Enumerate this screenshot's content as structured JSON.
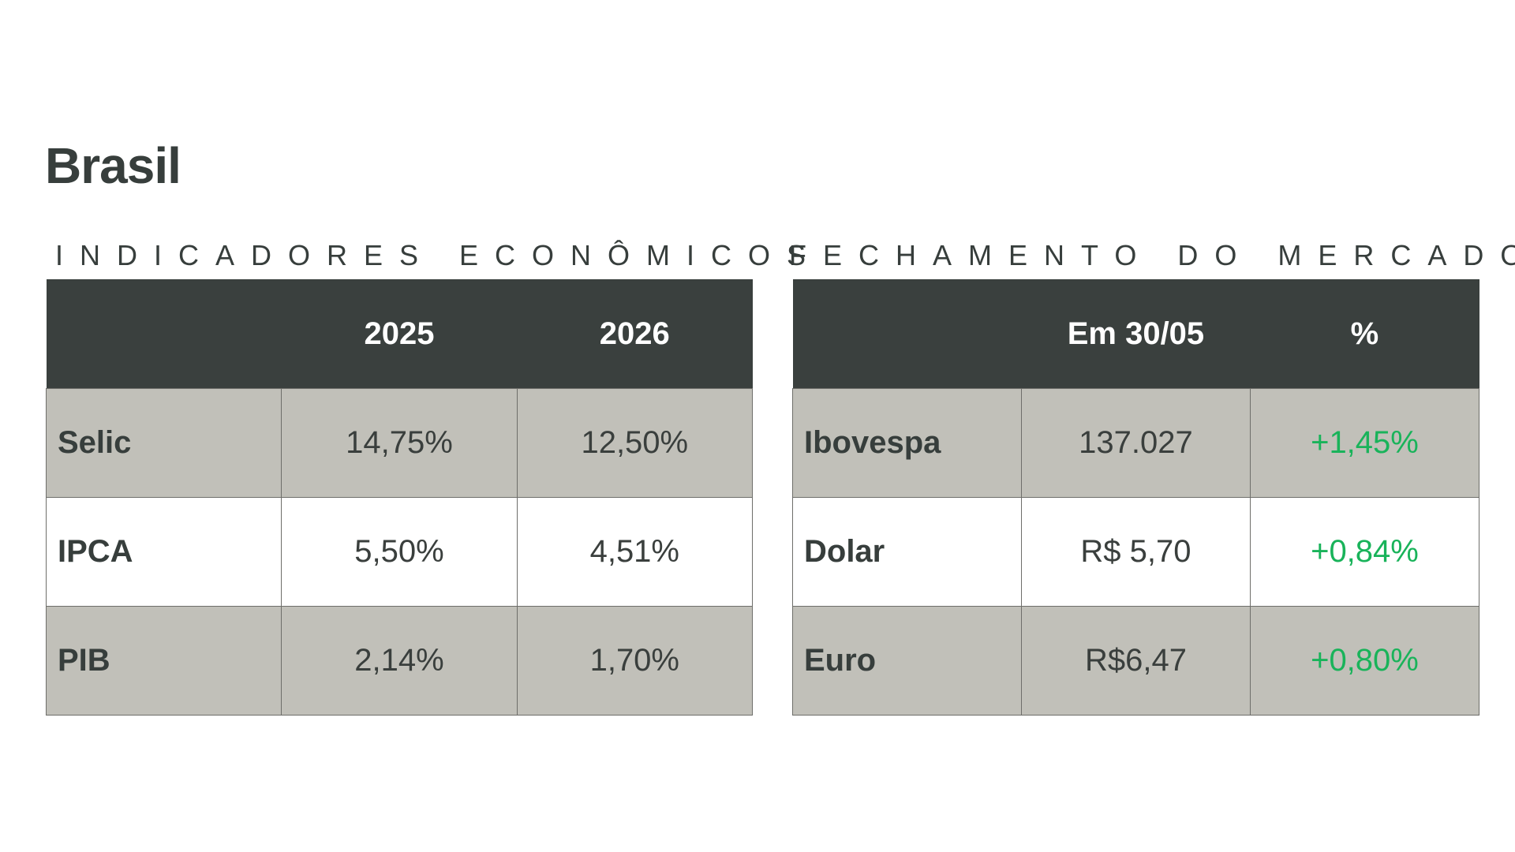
{
  "title": "Brasil",
  "indicators": {
    "label": "INDICADORES ECONÔMICOS",
    "headers": [
      "",
      "2025",
      "2026"
    ],
    "rows": [
      {
        "name": "Selic",
        "values": [
          "14,75%",
          "12,50%"
        ]
      },
      {
        "name": "IPCA",
        "values": [
          "5,50%",
          "4,51%"
        ]
      },
      {
        "name": "PIB",
        "values": [
          "2,14%",
          "1,70%"
        ]
      }
    ]
  },
  "market": {
    "label": "FECHAMENTO DO MERCADO",
    "headers": [
      "",
      "Em 30/05",
      "%"
    ],
    "rows": [
      {
        "name": "Ibovespa",
        "value": "137.027",
        "change": "+1,45%"
      },
      {
        "name": "Dolar",
        "value": "R$ 5,70",
        "change": "+0,84%"
      },
      {
        "name": "Euro",
        "value": "R$6,47",
        "change": "+0,80%"
      }
    ],
    "positive_color": "#19b35a"
  }
}
